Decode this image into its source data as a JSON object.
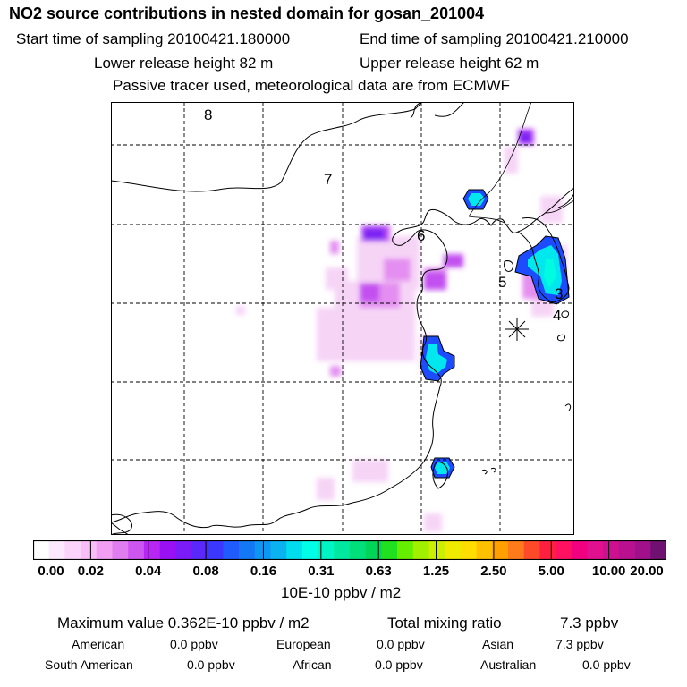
{
  "header": {
    "title": "NO2 source contributions in nested domain for gosan_201004",
    "start_time": "Start time of sampling 20100421.180000",
    "end_time": "End time of sampling 20100421.210000",
    "lower_release": "Lower release height   82 m",
    "upper_release": "Upper release height   62 m",
    "note": "Passive tracer used, meteorological data are from ECMWF"
  },
  "map": {
    "grid_labels": [
      "8",
      "7",
      "6",
      "5",
      "3",
      "4"
    ],
    "receptor_marker": "receptor-star"
  },
  "colorbar": {
    "tick_labels": [
      "0.00",
      "0.02",
      "0.04",
      "0.08",
      "0.16",
      "0.31",
      "0.63",
      "1.25",
      "2.50",
      "5.00",
      "10.00",
      "20.00"
    ],
    "colors": [
      "#ffffff",
      "#fde9fd",
      "#fbd3fb",
      "#f9bdf8",
      "#f19ef3",
      "#e07ef0",
      "#cd56f0",
      "#b727f3",
      "#9a10f4",
      "#7b1bf7",
      "#5a28fa",
      "#3b37fd",
      "#1f5bff",
      "#1477f6",
      "#0d96f2",
      "#0ab3ef",
      "#00ddee",
      "#00fde8",
      "#00f4c4",
      "#00e8a0",
      "#00df7a",
      "#00d55a",
      "#20e020",
      "#66ee00",
      "#a0f000",
      "#ccee00",
      "#eeea00",
      "#ffdd00",
      "#ffc000",
      "#ffa000",
      "#ff7a1a",
      "#ff4a2a",
      "#ff2040",
      "#ff1060",
      "#f00080",
      "#e0108f",
      "#cc1090",
      "#b8108e",
      "#a0108a",
      "#701070"
    ],
    "unit": "10E-10 ppbv / m2"
  },
  "summary": {
    "max_value": "Maximum value  0.362E-10 ppbv / m2",
    "total_label": "Total mixing ratio",
    "total_value": "7.3 ppbv",
    "regions": [
      {
        "name": "American",
        "value": "0.0 ppbv"
      },
      {
        "name": "European",
        "value": "0.0 ppbv"
      },
      {
        "name": "Asian",
        "value": "7.3 ppbv"
      },
      {
        "name": "South American",
        "value": "0.0 ppbv"
      },
      {
        "name": "African",
        "value": "0.0 ppbv"
      },
      {
        "name": "Australian",
        "value": "0.0 ppbv"
      }
    ]
  }
}
